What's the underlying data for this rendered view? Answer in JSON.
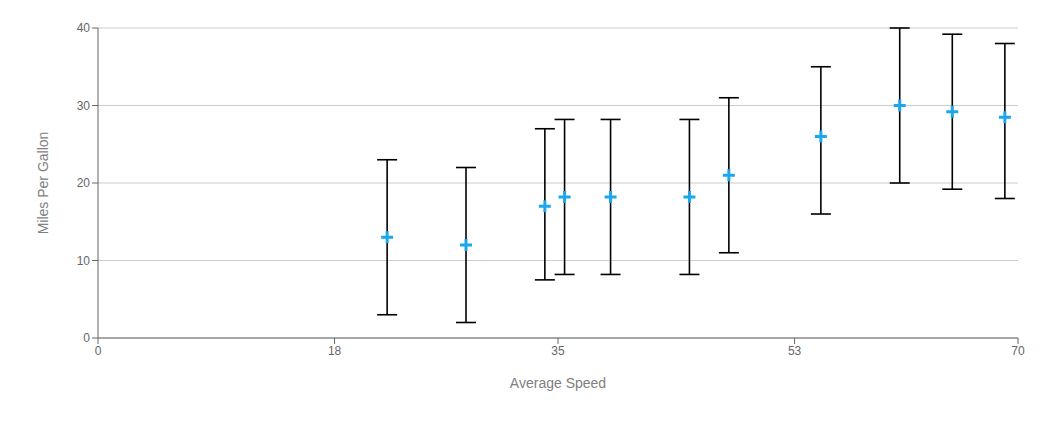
{
  "chart_data": {
    "type": "scatter",
    "x": [
      22,
      28,
      34,
      35.5,
      39,
      45,
      48,
      55,
      61,
      65,
      69
    ],
    "values": [
      13,
      12,
      17,
      18.2,
      18.2,
      18.2,
      21,
      26,
      30,
      29.2,
      28.5
    ],
    "error_upper": [
      10,
      10,
      10,
      10,
      10,
      10,
      10,
      9,
      10,
      10,
      9.5
    ],
    "error_lower": [
      10,
      10,
      9.5,
      10,
      10,
      10,
      10,
      10,
      10,
      10,
      10.5
    ],
    "color": "#1ca7ec",
    "marker": "plus",
    "xlabel": "Average Speed",
    "ylabel": "Miles Per Gallon",
    "xlim": [
      0,
      70
    ],
    "ylim": [
      0,
      40
    ],
    "xticks": [
      0,
      18,
      35,
      53,
      70
    ],
    "yticks": [
      0,
      10,
      20,
      30,
      40
    ],
    "grid": "y"
  }
}
